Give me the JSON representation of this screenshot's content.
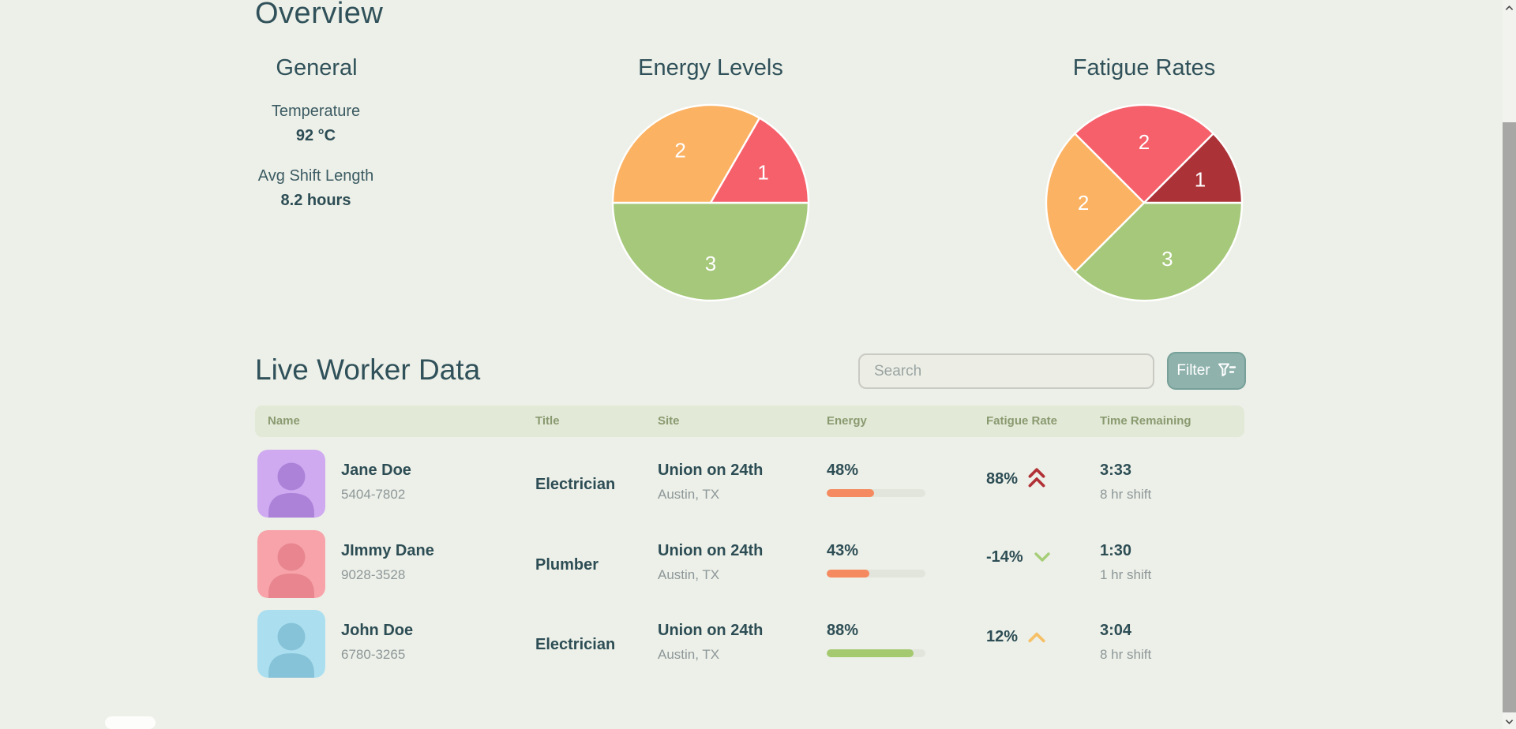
{
  "page": {
    "title": "Overview"
  },
  "general": {
    "heading": "General",
    "stats": [
      {
        "label": "Temperature",
        "value": "92 °C"
      },
      {
        "label": "Avg Shift Length",
        "value": "8.2 hours"
      }
    ]
  },
  "chart_data": [
    {
      "type": "pie",
      "title": "Energy Levels",
      "start_angle": "east",
      "direction": "clockwise",
      "slices": [
        {
          "label": "3",
          "value": 3,
          "color": "#a5c87a"
        },
        {
          "label": "2",
          "value": 2,
          "color": "#fbb262"
        },
        {
          "label": "1",
          "value": 1,
          "color": "#f6606b"
        }
      ]
    },
    {
      "type": "pie",
      "title": "Fatigue Rates",
      "start_angle": "east",
      "direction": "clockwise",
      "slices": [
        {
          "label": "3",
          "value": 3,
          "color": "#a5c87a"
        },
        {
          "label": "2",
          "value": 2,
          "color": "#fbb262"
        },
        {
          "label": "2",
          "value": 2,
          "color": "#f6606b"
        },
        {
          "label": "1",
          "value": 1,
          "color": "#ab3338"
        }
      ]
    }
  ],
  "worker_section": {
    "heading": "Live Worker Data",
    "search_placeholder": "Search",
    "filter_label": "Filter",
    "table": {
      "headers": [
        "Name",
        "Title",
        "Site",
        "Energy",
        "Fatigue Rate",
        "Time Remaining"
      ],
      "rows": [
        {
          "name": "Jane Doe",
          "id": "5404-7802",
          "title": "Electrician",
          "site": "Union on 24th",
          "site_sub": "Austin, TX",
          "energy": "48%",
          "energy_pct": 48,
          "energy_color": "#f58a60",
          "fatigue": "88%",
          "fatigue_trend": "up-double",
          "trend_color": "#b13136",
          "time": "3:33",
          "shift": "8 hr shift",
          "avatar_bg": "#cfaaf1",
          "avatar_fg": "#ab82d8"
        },
        {
          "name": "JImmy Dane",
          "id": "9028-3528",
          "title": "Plumber",
          "site": "Union on 24th",
          "site_sub": "Austin, TX",
          "energy": "43%",
          "energy_pct": 43,
          "energy_color": "#f58a60",
          "fatigue": "-14%",
          "fatigue_trend": "down",
          "trend_color": "#a6ce78",
          "time": "1:30",
          "shift": "1 hr shift",
          "avatar_bg": "#f7a3a9",
          "avatar_fg": "#e8858e"
        },
        {
          "name": "John Doe",
          "id": "6780-3265",
          "title": "Electrician",
          "site": "Union on 24th",
          "site_sub": "Austin, TX",
          "energy": "88%",
          "energy_pct": 88,
          "energy_color": "#a4c96f",
          "fatigue": "12%",
          "fatigue_trend": "up",
          "trend_color": "#f6c066",
          "time": "3:04",
          "shift": "8 hr shift",
          "avatar_bg": "#abdff0",
          "avatar_fg": "#86c3d8"
        }
      ]
    }
  }
}
